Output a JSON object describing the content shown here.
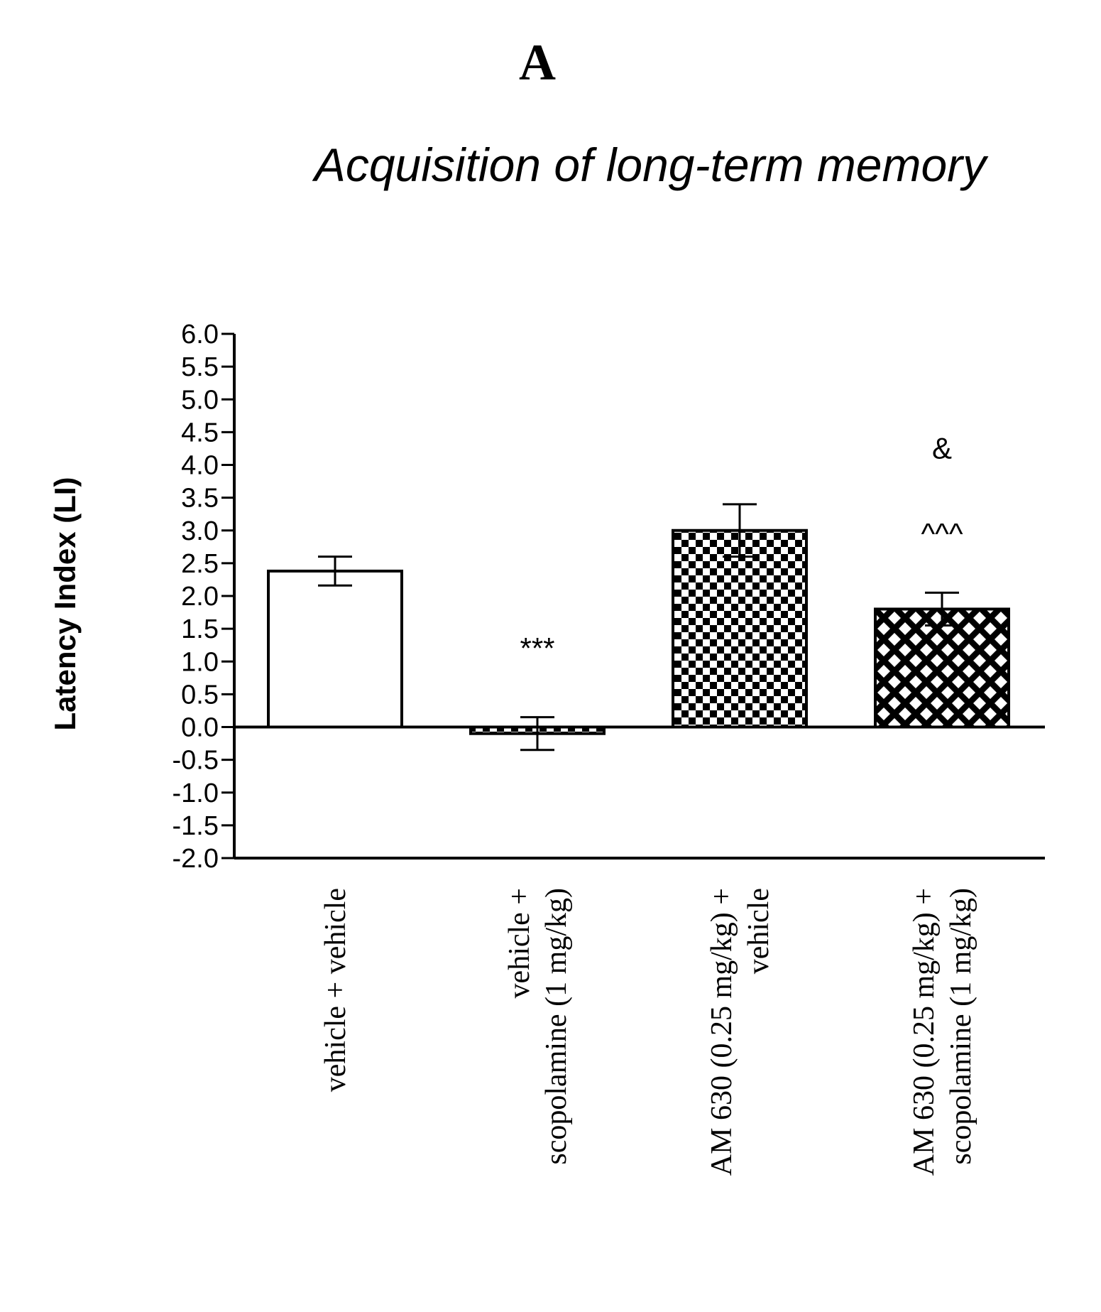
{
  "panel_label": "A",
  "chart_data": {
    "type": "bar",
    "title": "Acquisition of long-term memory",
    "ylabel": "Latency Index (LI)",
    "xlabel": "",
    "ylim": [
      -2.0,
      6.0
    ],
    "ytick_step": 0.5,
    "yticks": [
      "6.0",
      "5.5",
      "5.0",
      "4.5",
      "4.0",
      "3.5",
      "3.0",
      "2.5",
      "2.0",
      "1.5",
      "1.0",
      "0.5",
      "0.0",
      "-0.5",
      "-1.0",
      "-1.5",
      "-2.0"
    ],
    "grid": false,
    "legend": "none",
    "categories": [
      {
        "lines": [
          "vehicle + vehicle"
        ]
      },
      {
        "lines": [
          "vehicle +",
          "scopolamine (1 mg/kg)"
        ]
      },
      {
        "lines": [
          "AM 630 (0.25 mg/kg) +",
          "vehicle"
        ]
      },
      {
        "lines": [
          "AM 630 (0.25 mg/kg) +",
          "scopolamine (1 mg/kg)"
        ]
      }
    ],
    "series": [
      {
        "values": [
          2.38,
          -0.1,
          3.0,
          1.8
        ],
        "errors": [
          0.22,
          0.25,
          0.4,
          0.25
        ],
        "fills": [
          "white",
          "checkerboard",
          "checkerboard",
          "diamond-lattice"
        ]
      }
    ],
    "annotations": [
      {
        "category": 1,
        "text": "***",
        "y": 1.2
      },
      {
        "category": 3,
        "text": "^^^",
        "y": 2.95
      },
      {
        "category": 3,
        "text": "&",
        "y": 4.25
      }
    ],
    "colors": {
      "ink": "#000000",
      "background": "#ffffff"
    }
  }
}
